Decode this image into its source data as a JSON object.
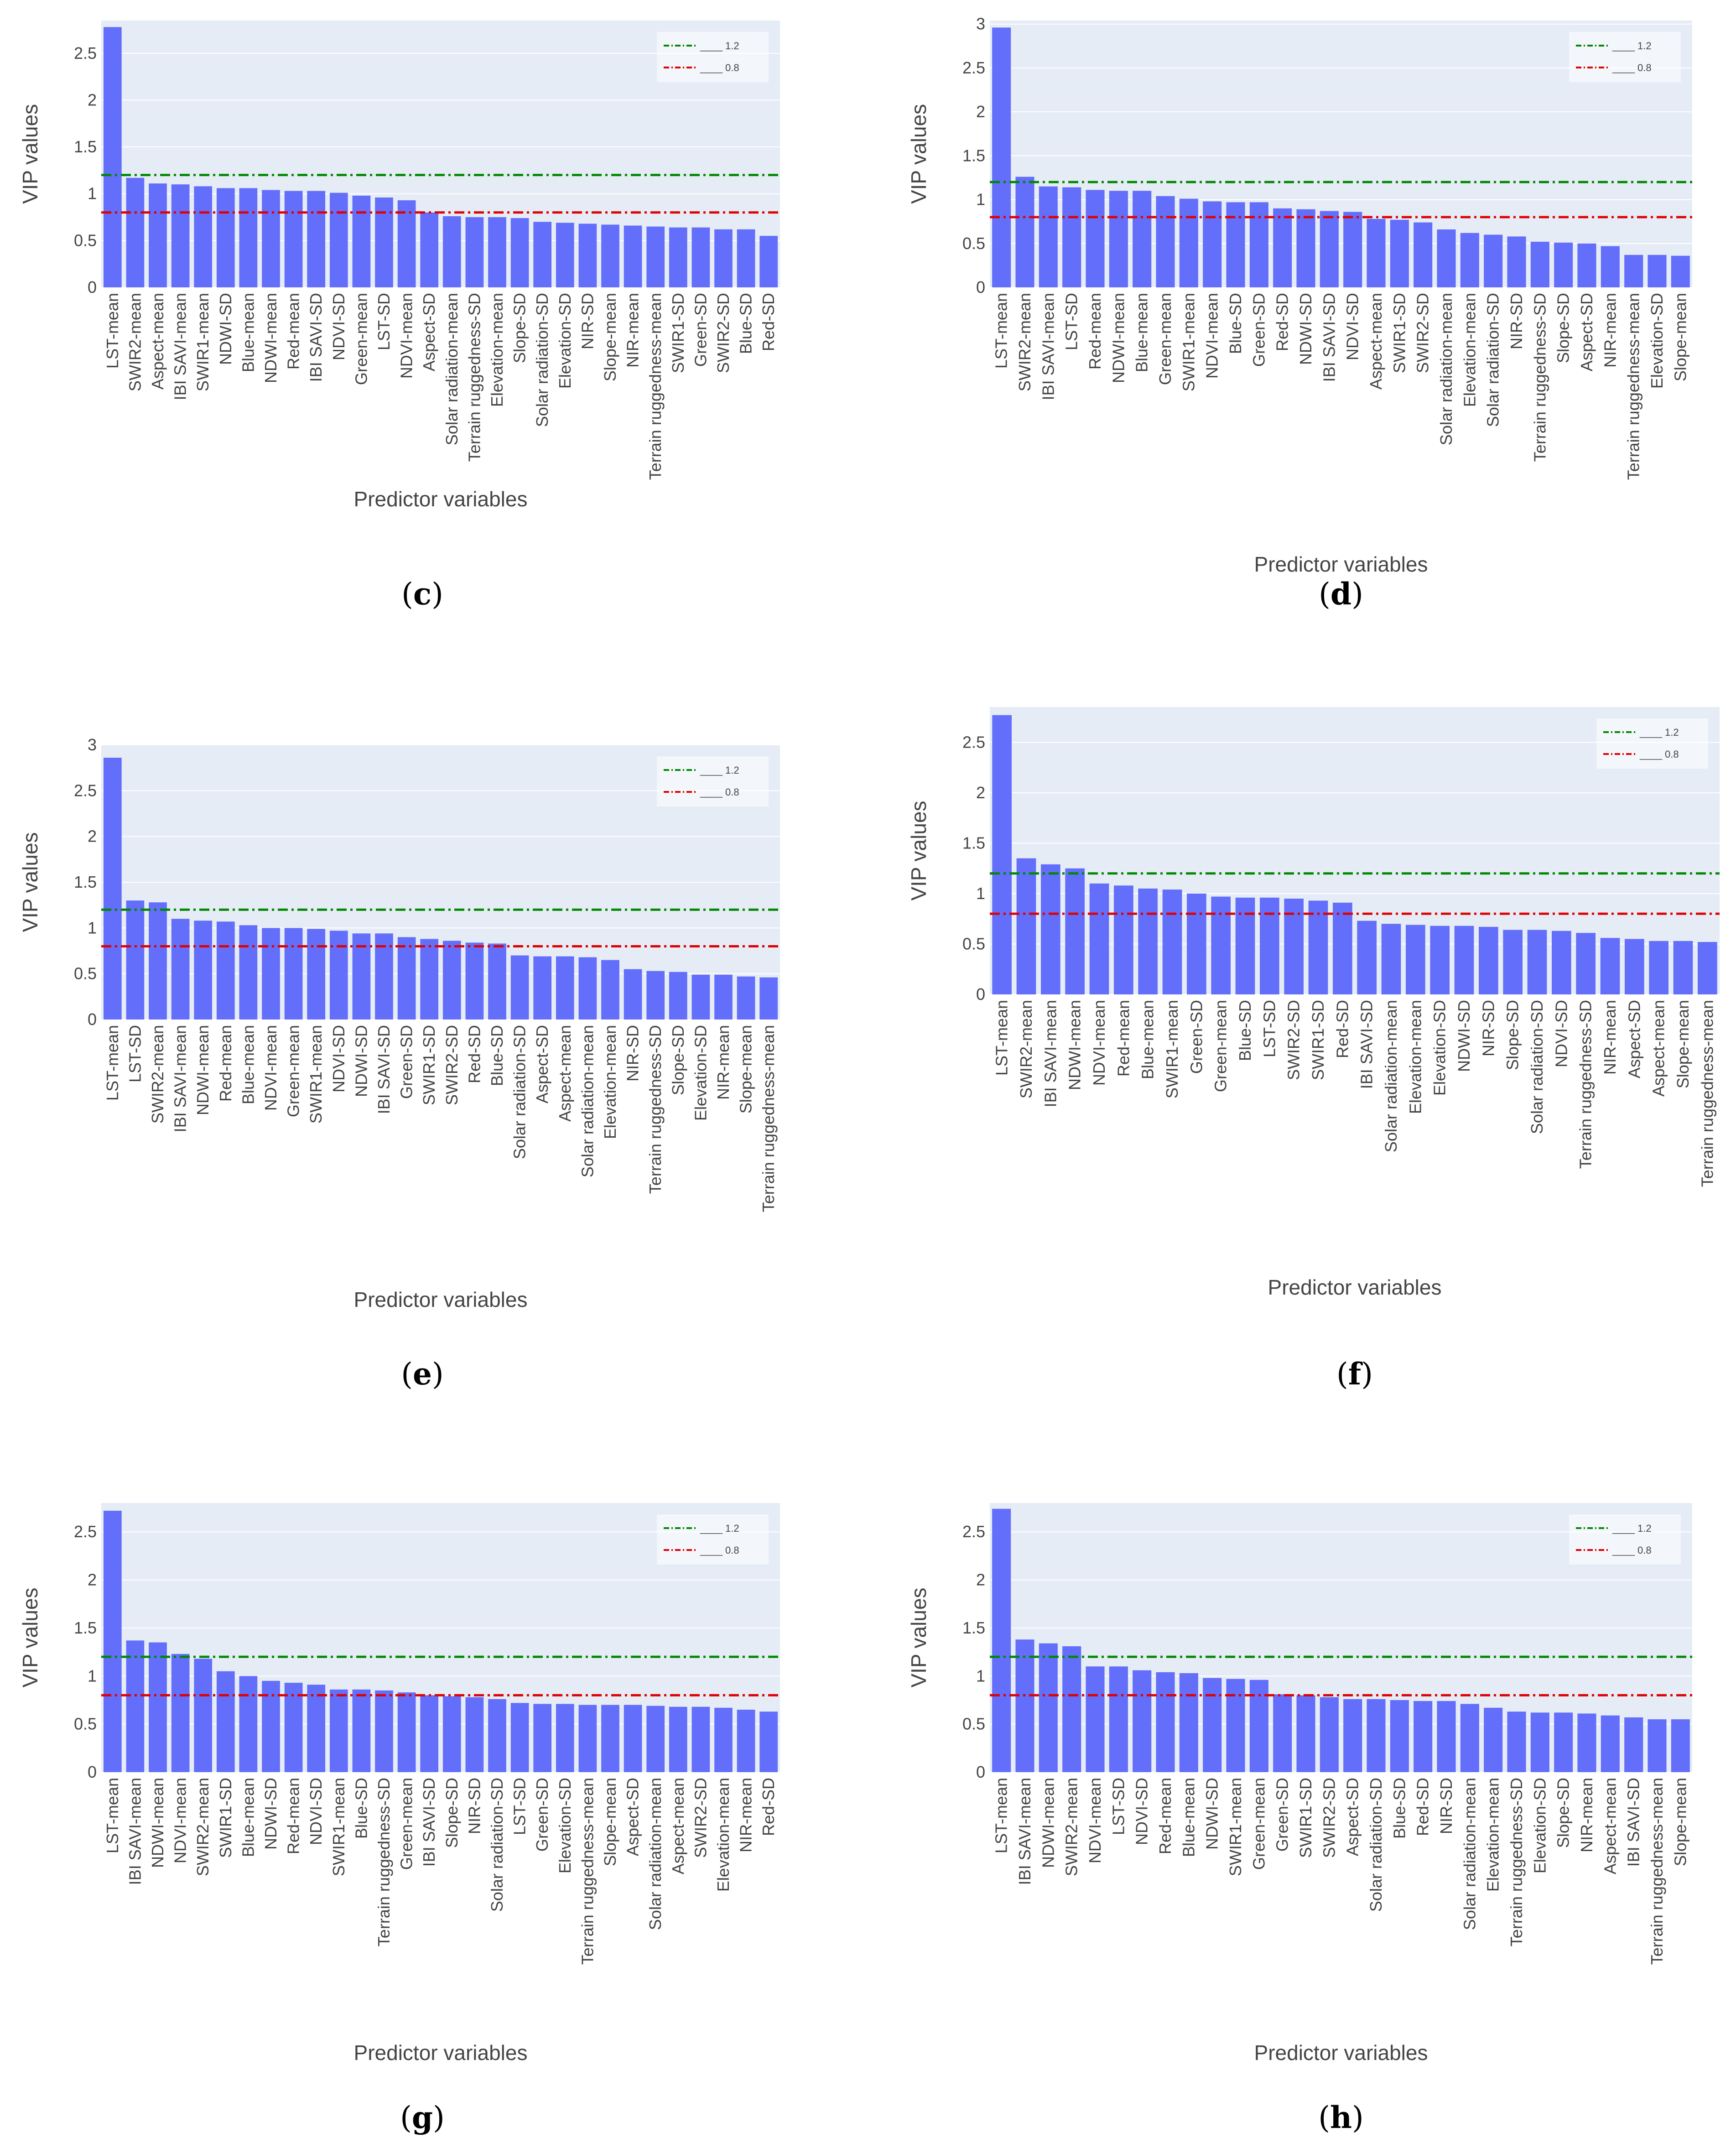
{
  "colors": {
    "bar": "#636EFA",
    "plot_bg": "#E5ECF6",
    "grid": "#FFFFFF",
    "line_high": "#008800",
    "line_low": "#E00000"
  },
  "chart_data": [
    {
      "panel": "c",
      "type": "bar",
      "xlabel": "Predictor variables",
      "ylabel": "VIP values",
      "ylim": [
        0,
        2.85
      ],
      "yticks": [
        "0",
        "0.5",
        "1",
        "1.5",
        "2",
        "2.5"
      ],
      "legend": [
        "____ 1.2",
        "____ 0.8"
      ],
      "hlines": [
        1.2,
        0.8
      ],
      "categories": [
        "LST-mean",
        "SWIR2-mean",
        "Aspect-mean",
        "IBI SAVI-mean",
        "SWIR1-mean",
        "NDWI-SD",
        "Blue-mean",
        "NDWI-mean",
        "Red-mean",
        "IBI SAVI-SD",
        "NDVI-SD",
        "Green-mean",
        "LST-SD",
        "NDVI-mean",
        "Aspect-SD",
        "Solar radiation-mean",
        "Terrain ruggedness-SD",
        "Elevation-mean",
        "Slope-SD",
        "Solar radiation-SD",
        "Elevation-SD",
        "NIR-SD",
        "Slope-mean",
        "NIR-mean",
        "Terrain ruggedness-mean",
        "SWIR1-SD",
        "Green-SD",
        "SWIR2-SD",
        "Blue-SD",
        "Red-SD"
      ],
      "values": [
        2.78,
        1.17,
        1.11,
        1.1,
        1.08,
        1.06,
        1.06,
        1.04,
        1.03,
        1.03,
        1.01,
        0.98,
        0.96,
        0.93,
        0.8,
        0.76,
        0.75,
        0.75,
        0.74,
        0.7,
        0.69,
        0.68,
        0.67,
        0.66,
        0.65,
        0.64,
        0.64,
        0.62,
        0.62,
        0.55
      ]
    },
    {
      "panel": "d",
      "type": "bar",
      "xlabel": "Predictor variables",
      "ylabel": "VIP values",
      "ylim": [
        0,
        3.04
      ],
      "yticks": [
        "0",
        "0.5",
        "1",
        "1.5",
        "2",
        "2.5",
        "3"
      ],
      "legend": [
        "____ 1.2",
        "____ 0.8"
      ],
      "hlines": [
        1.2,
        0.8
      ],
      "categories": [
        "LST-mean",
        "SWIR2-mean",
        "IBI SAVI-mean",
        "LST-SD",
        "Red-mean",
        "NDWI-mean",
        "Blue-mean",
        "Green-mean",
        "SWIR1-mean",
        "NDVI-mean",
        "Blue-SD",
        "Green-SD",
        "Red-SD",
        "NDWI-SD",
        "IBI SAVI-SD",
        "NDVI-SD",
        "Aspect-mean",
        "SWIR1-SD",
        "SWIR2-SD",
        "Solar radiation-mean",
        "Elevation-mean",
        "Solar radiation-SD",
        "NIR-SD",
        "Terrain ruggedness-SD",
        "Slope-SD",
        "Aspect-SD",
        "NIR-mean",
        "Terrain ruggedness-mean",
        "Elevation-SD",
        "Slope-mean"
      ],
      "values": [
        2.96,
        1.26,
        1.15,
        1.14,
        1.11,
        1.1,
        1.1,
        1.04,
        1.01,
        0.98,
        0.97,
        0.97,
        0.9,
        0.89,
        0.87,
        0.86,
        0.78,
        0.77,
        0.74,
        0.66,
        0.62,
        0.6,
        0.58,
        0.52,
        0.51,
        0.5,
        0.47,
        0.37,
        0.37,
        0.36
      ]
    },
    {
      "panel": "e",
      "type": "bar",
      "xlabel": "Predictor variables",
      "ylabel": "VIP values",
      "ylim": [
        0,
        3.0
      ],
      "yticks": [
        "0",
        "0.5",
        "1",
        "1.5",
        "2",
        "2.5",
        "3"
      ],
      "legend": [
        "____ 1.2",
        "____ 0.8"
      ],
      "hlines": [
        1.2,
        0.8
      ],
      "categories": [
        "LST-mean",
        "LST-SD",
        "SWIR2-mean",
        "IBI SAVI-mean",
        "NDWI-mean",
        "Red-mean",
        "Blue-mean",
        "NDVI-mean",
        "Green-mean",
        "SWIR1-mean",
        "NDVI-SD",
        "NDWI-SD",
        "IBI SAVI-SD",
        "Green-SD",
        "SWIR1-SD",
        "SWIR2-SD",
        "Red-SD",
        "Blue-SD",
        "Solar radiation-SD",
        "Aspect-SD",
        "Aspect-mean",
        "Solar radiation-mean",
        "Elevation-mean",
        "NIR-SD",
        "Terrain ruggedness-SD",
        "Slope-SD",
        "Elevation-SD",
        "NIR-mean",
        "Slope-mean",
        "Terrain ruggedness-mean"
      ],
      "values": [
        2.86,
        1.3,
        1.28,
        1.1,
        1.08,
        1.07,
        1.03,
        1.0,
        1.0,
        0.99,
        0.97,
        0.94,
        0.94,
        0.9,
        0.88,
        0.86,
        0.84,
        0.83,
        0.7,
        0.69,
        0.69,
        0.68,
        0.65,
        0.55,
        0.53,
        0.52,
        0.49,
        0.49,
        0.47,
        0.46
      ]
    },
    {
      "panel": "f",
      "type": "bar",
      "xlabel": "Predictor variables",
      "ylabel": "VIP values",
      "ylim": [
        0,
        2.85
      ],
      "yticks": [
        "0",
        "0.5",
        "1",
        "1.5",
        "2",
        "2.5"
      ],
      "legend": [
        "____ 1.2",
        "____ 0.8"
      ],
      "hlines": [
        1.2,
        0.8
      ],
      "categories": [
        "LST-mean",
        "SWIR2-mean",
        "IBI SAVI-mean",
        "NDWI-mean",
        "NDVI-mean",
        "Red-mean",
        "Blue-mean",
        "SWIR1-mean",
        "Green-SD",
        "Green-mean",
        "Blue-SD",
        "LST-SD",
        "SWIR2-SD",
        "SWIR1-SD",
        "Red-SD",
        "IBI SAVI-SD",
        "Solar radiation-mean",
        "Elevation-mean",
        "Elevation-SD",
        "NDWI-SD",
        "NIR-SD",
        "Slope-SD",
        "Solar radiation-SD",
        "NDVI-SD",
        "Terrain ruggedness-SD",
        "NIR-mean",
        "Aspect-SD",
        "Aspect-mean",
        "Slope-mean",
        "Terrain ruggedness-mean"
      ],
      "values": [
        2.77,
        1.35,
        1.29,
        1.25,
        1.1,
        1.08,
        1.05,
        1.04,
        1.0,
        0.97,
        0.96,
        0.96,
        0.95,
        0.93,
        0.91,
        0.73,
        0.7,
        0.69,
        0.68,
        0.68,
        0.67,
        0.64,
        0.64,
        0.63,
        0.61,
        0.56,
        0.55,
        0.53,
        0.53,
        0.52
      ]
    },
    {
      "panel": "g",
      "type": "bar",
      "xlabel": "Predictor variables",
      "ylabel": "VIP values",
      "ylim": [
        0,
        2.8
      ],
      "yticks": [
        "0",
        "0.5",
        "1",
        "1.5",
        "2",
        "2.5"
      ],
      "legend": [
        "____ 1.2",
        "____ 0.8"
      ],
      "hlines": [
        1.2,
        0.8
      ],
      "categories": [
        "LST-mean",
        "IBI SAVI-mean",
        "NDWI-mean",
        "NDVI-mean",
        "SWIR2-mean",
        "SWIR1-SD",
        "Blue-mean",
        "NDWI-SD",
        "Red-mean",
        "NDVI-SD",
        "SWIR1-mean",
        "Blue-SD",
        "Terrain ruggedness-SD",
        "Green-mean",
        "IBI SAVI-SD",
        "Slope-SD",
        "NIR-SD",
        "Solar radiation-SD",
        "LST-SD",
        "Green-SD",
        "Elevation-SD",
        "Terrain ruggedness-mean",
        "Slope-mean",
        "Aspect-SD",
        "Solar radiation-mean",
        "Aspect-mean",
        "SWIR2-SD",
        "Elevation-mean",
        "NIR-mean",
        "Red-SD"
      ],
      "values": [
        2.72,
        1.37,
        1.35,
        1.23,
        1.18,
        1.05,
        1.0,
        0.95,
        0.93,
        0.91,
        0.86,
        0.86,
        0.85,
        0.83,
        0.8,
        0.79,
        0.78,
        0.76,
        0.72,
        0.71,
        0.71,
        0.7,
        0.7,
        0.7,
        0.69,
        0.68,
        0.68,
        0.67,
        0.65,
        0.63
      ]
    },
    {
      "panel": "h",
      "type": "bar",
      "xlabel": "Predictor variables",
      "ylabel": "VIP values",
      "ylim": [
        0,
        2.8
      ],
      "yticks": [
        "0",
        "0.5",
        "1",
        "1.5",
        "2",
        "2.5"
      ],
      "legend": [
        "____ 1.2",
        "____ 0.8"
      ],
      "hlines": [
        1.2,
        0.8
      ],
      "categories": [
        "LST-mean",
        "IBI SAVI-mean",
        "NDWI-mean",
        "SWIR2-mean",
        "NDVI-mean",
        "LST-SD",
        "NDVI-SD",
        "Red-mean",
        "Blue-mean",
        "NDWI-SD",
        "SWIR1-mean",
        "Green-mean",
        "Green-SD",
        "SWIR1-SD",
        "SWIR2-SD",
        "Aspect-SD",
        "Solar radiation-SD",
        "Blue-SD",
        "Red-SD",
        "NIR-SD",
        "Solar radiation-mean",
        "Elevation-mean",
        "Terrain ruggedness-SD",
        "Elevation-SD",
        "Slope-SD",
        "NIR-mean",
        "Aspect-mean",
        "IBI SAVI-SD",
        "Terrain ruggedness-mean",
        "Slope-mean"
      ],
      "values": [
        2.74,
        1.38,
        1.34,
        1.31,
        1.1,
        1.1,
        1.06,
        1.04,
        1.03,
        0.98,
        0.97,
        0.96,
        0.81,
        0.8,
        0.78,
        0.76,
        0.76,
        0.75,
        0.74,
        0.74,
        0.71,
        0.67,
        0.63,
        0.62,
        0.62,
        0.61,
        0.59,
        0.57,
        0.55,
        0.55
      ]
    }
  ]
}
